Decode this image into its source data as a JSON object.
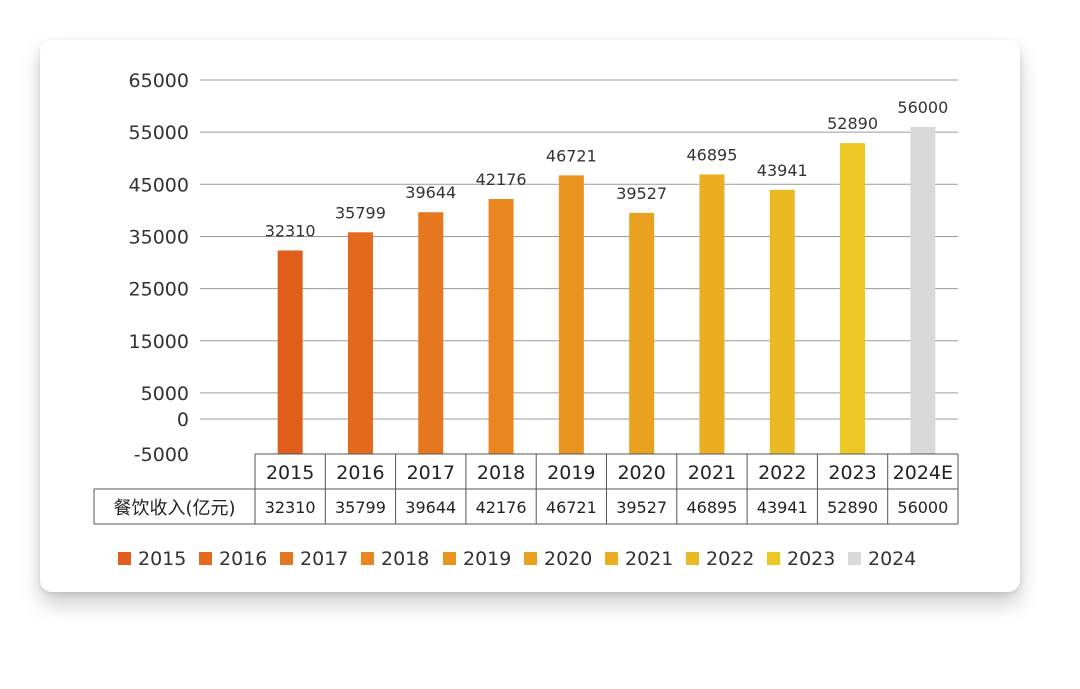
{
  "chart_data": {
    "type": "bar",
    "categories": [
      "2015",
      "2016",
      "2017",
      "2018",
      "2019",
      "2020",
      "2021",
      "2022",
      "2023",
      "2024E"
    ],
    "values": [
      32310,
      35799,
      39644,
      42176,
      46721,
      39527,
      46895,
      43941,
      52890,
      56000
    ],
    "y_ticks": [
      65000,
      55000,
      45000,
      35000,
      25000,
      15000,
      5000,
      0,
      -5000
    ],
    "ylim": [
      -5000,
      65000
    ],
    "grid": true,
    "table": {
      "row_label": "餐饮收入(亿元)",
      "values": [
        "32310",
        "35799",
        "39644",
        "42176",
        "46721",
        "39527",
        "46895",
        "43941",
        "52890",
        "56000"
      ]
    },
    "legend": {
      "position": "bottom",
      "entries": [
        "2015",
        "2016",
        "2017",
        "2018",
        "2019",
        "2020",
        "2021",
        "2022",
        "2023",
        "2024"
      ]
    },
    "colors": [
      "#e15d1c",
      "#e3691d",
      "#e6771e",
      "#e9861f",
      "#ea9420",
      "#eba120",
      "#ebae20",
      "#ebb923",
      "#ebc823",
      "#d9d9d9"
    ]
  }
}
